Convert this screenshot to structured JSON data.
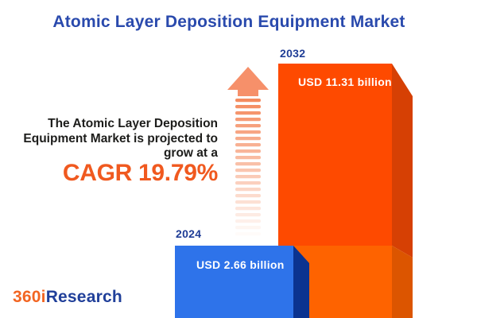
{
  "header": {
    "title": "Atomic Layer Deposition Equipment Market"
  },
  "description": {
    "lines": [
      "The Atomic Layer Deposition",
      "Equipment Market is projected to",
      "grow at a"
    ],
    "cagr_text": "CAGR 19.79%"
  },
  "chart_data": {
    "type": "bar",
    "title": "Atomic Layer Deposition Equipment Market",
    "categories": [
      "2024",
      "2032"
    ],
    "values": [
      2.66,
      11.31
    ],
    "unit": "USD billion",
    "value_labels": [
      "USD 2.66 billion",
      "USD 11.31 billion"
    ],
    "cagr_percent": 19.79,
    "orientation": "vertical",
    "legend": "none",
    "grid": "off",
    "bar_colors": [
      "#2E73EA",
      "#FE4A00"
    ]
  },
  "logo": {
    "part1": "360i",
    "part2": "Research"
  },
  "colors": {
    "title_blue": "#2A4AAD",
    "year_label_navy": "#1F3D96",
    "body_text": "#1D1D1B",
    "accent_orange": "#F0591F",
    "bar_2024_face": "#2E73EA",
    "bar_2024_side": "#0B3390",
    "bar_2032_face_top": "#FE4A00",
    "bar_2032_face_bottom": "#FE6300",
    "bar_2032_side_top": "#D64004",
    "bar_2032_side_bottom": "#DC5500",
    "arrow_head": "#F6906A",
    "arrow_stripe": "#F4875A",
    "logo_orange": "#F26522",
    "logo_blue": "#21409A",
    "bar_value_text": "#FFFFFF"
  }
}
